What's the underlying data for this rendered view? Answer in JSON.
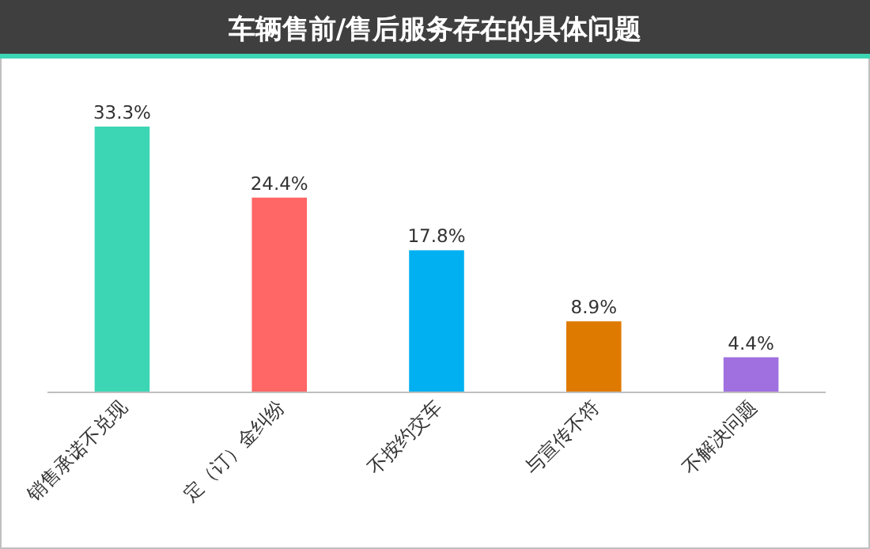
{
  "chart_data": {
    "type": "bar",
    "title": "车辆售前/售后服务存在的具体问题",
    "categories": [
      "销售承诺不兑现",
      "定（订）金纠纷",
      "不按约交车",
      "与宣传不符",
      "不解决问题"
    ],
    "values": [
      33.3,
      24.4,
      17.8,
      8.9,
      4.4
    ],
    "colors": [
      "#3dd6b4",
      "#ff6666",
      "#00b0f0",
      "#df7a00",
      "#a070e0"
    ],
    "value_labels": [
      "33.3%",
      "24.4%",
      "17.8%",
      "8.9%",
      "4.4%"
    ]
  }
}
